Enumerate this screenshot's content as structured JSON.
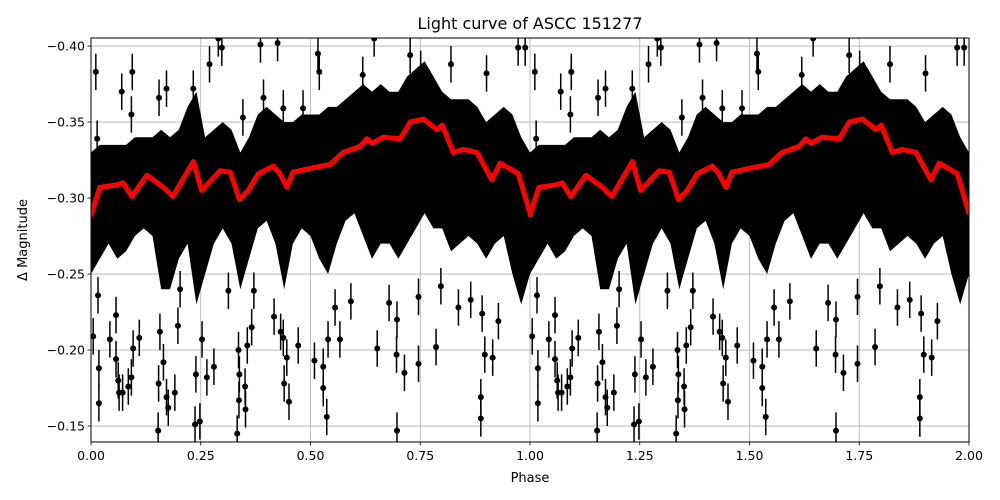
{
  "chart_data": {
    "type": "scatter",
    "title": "Light curve of ASCC 151277",
    "xlabel": "Phase",
    "ylabel": "Δ Magnitude",
    "xlim": [
      0,
      2
    ],
    "ylim": [
      -0.1395,
      -0.4053
    ],
    "y_inverted": true,
    "grid": true,
    "x_ticks": [
      0,
      0.25,
      0.5,
      0.75,
      1.0,
      1.25,
      1.5,
      1.75,
      2.0
    ],
    "x_tick_labels": [
      "0.00",
      "0.25",
      "0.50",
      "0.75",
      "1.00",
      "1.25",
      "1.50",
      "1.75",
      "2.00"
    ],
    "y_ticks": [
      -0.4,
      -0.35,
      -0.3,
      -0.25,
      -0.2,
      -0.15
    ],
    "y_tick_labels": [
      "−0.40",
      "−0.35",
      "−0.30",
      "−0.25",
      "−0.20",
      "−0.15"
    ],
    "folded_period_repeats": 2,
    "colors": {
      "points": "#000000",
      "trend": "#ff0000",
      "grid": "#b0b0b0"
    },
    "observations_dense_range": {
      "phase": [
        0,
        0.02,
        0.04,
        0.06,
        0.08,
        0.1,
        0.12,
        0.14,
        0.16,
        0.18,
        0.2,
        0.22,
        0.24,
        0.26,
        0.28,
        0.3,
        0.32,
        0.34,
        0.36,
        0.38,
        0.4,
        0.42,
        0.44,
        0.46,
        0.48,
        0.5,
        0.52,
        0.54,
        0.56,
        0.58,
        0.6,
        0.62,
        0.64,
        0.66,
        0.68,
        0.7,
        0.72,
        0.74,
        0.76,
        0.78,
        0.8,
        0.82,
        0.84,
        0.86,
        0.88,
        0.9,
        0.92,
        0.94,
        0.96,
        0.98,
        1.0
      ],
      "bright": [
        -0.33,
        -0.335,
        -0.335,
        -0.335,
        -0.335,
        -0.34,
        -0.34,
        -0.34,
        -0.345,
        -0.34,
        -0.345,
        -0.36,
        -0.37,
        -0.34,
        -0.345,
        -0.35,
        -0.345,
        -0.33,
        -0.34,
        -0.355,
        -0.36,
        -0.355,
        -0.35,
        -0.35,
        -0.355,
        -0.355,
        -0.355,
        -0.36,
        -0.36,
        -0.365,
        -0.37,
        -0.375,
        -0.37,
        -0.375,
        -0.37,
        -0.37,
        -0.38,
        -0.385,
        -0.39,
        -0.38,
        -0.37,
        -0.365,
        -0.365,
        -0.365,
        -0.36,
        -0.35,
        -0.355,
        -0.36,
        -0.355,
        -0.34,
        -0.33
      ],
      "faint": [
        -0.25,
        -0.26,
        -0.27,
        -0.26,
        -0.265,
        -0.275,
        -0.28,
        -0.275,
        -0.24,
        -0.24,
        -0.26,
        -0.27,
        -0.23,
        -0.25,
        -0.27,
        -0.28,
        -0.27,
        -0.24,
        -0.26,
        -0.28,
        -0.285,
        -0.27,
        -0.24,
        -0.27,
        -0.28,
        -0.275,
        -0.26,
        -0.25,
        -0.27,
        -0.285,
        -0.29,
        -0.275,
        -0.26,
        -0.27,
        -0.27,
        -0.26,
        -0.27,
        -0.28,
        -0.29,
        -0.28,
        -0.28,
        -0.265,
        -0.27,
        -0.275,
        -0.27,
        -0.26,
        -0.27,
        -0.275,
        -0.25,
        -0.23,
        -0.25
      ]
    },
    "observations": {
      "error": 0.012,
      "points": [
        [
          0.005,
          -0.209
        ],
        [
          0.018,
          -0.188
        ],
        [
          0.018,
          -0.165
        ],
        [
          0.016,
          -0.236
        ],
        [
          0.043,
          -0.207
        ],
        [
          0.057,
          -0.223
        ],
        [
          0.057,
          -0.194
        ],
        [
          0.062,
          -0.18
        ],
        [
          0.064,
          -0.172
        ],
        [
          0.072,
          -0.172
        ],
        [
          0.085,
          -0.176
        ],
        [
          0.092,
          -0.182
        ],
        [
          0.096,
          -0.201
        ],
        [
          0.11,
          -0.208
        ],
        [
          0.154,
          -0.178
        ],
        [
          0.153,
          -0.147
        ],
        [
          0.157,
          -0.212
        ],
        [
          0.165,
          -0.192
        ],
        [
          0.172,
          -0.169
        ],
        [
          0.176,
          -0.162
        ],
        [
          0.191,
          -0.172
        ],
        [
          0.198,
          -0.216
        ],
        [
          0.203,
          -0.24
        ],
        [
          0.237,
          -0.151
        ],
        [
          0.239,
          -0.184
        ],
        [
          0.248,
          -0.153
        ],
        [
          0.253,
          -0.207
        ],
        [
          0.264,
          -0.182
        ],
        [
          0.28,
          -0.189
        ],
        [
          0.313,
          -0.239
        ],
        [
          0.333,
          -0.145
        ],
        [
          0.336,
          -0.2
        ],
        [
          0.337,
          -0.167
        ],
        [
          0.338,
          -0.184
        ],
        [
          0.351,
          -0.176
        ],
        [
          0.352,
          -0.161
        ],
        [
          0.356,
          -0.203
        ],
        [
          0.366,
          -0.215
        ],
        [
          0.371,
          -0.239
        ],
        [
          0.417,
          -0.222
        ],
        [
          0.432,
          -0.212
        ],
        [
          0.438,
          -0.208
        ],
        [
          0.44,
          -0.178
        ],
        [
          0.446,
          -0.195
        ],
        [
          0.451,
          -0.166
        ],
        [
          0.472,
          -0.203
        ],
        [
          0.509,
          -0.193
        ],
        [
          0.529,
          -0.189
        ],
        [
          0.529,
          -0.175
        ],
        [
          0.537,
          -0.156
        ],
        [
          0.54,
          -0.207
        ],
        [
          0.567,
          -0.207
        ],
        [
          0.556,
          -0.228
        ],
        [
          0.592,
          -0.232
        ],
        [
          0.652,
          -0.201
        ],
        [
          0.679,
          -0.231
        ],
        [
          0.696,
          -0.197
        ],
        [
          0.697,
          -0.22
        ],
        [
          0.697,
          -0.147
        ],
        [
          0.714,
          -0.185
        ],
        [
          0.746,
          -0.191
        ],
        [
          0.746,
          -0.235
        ],
        [
          0.786,
          -0.202
        ],
        [
          0.797,
          -0.242
        ],
        [
          0.837,
          -0.228
        ],
        [
          0.865,
          -0.233
        ],
        [
          0.888,
          -0.169
        ],
        [
          0.888,
          -0.155
        ],
        [
          0.891,
          -0.224
        ],
        [
          0.897,
          -0.197
        ],
        [
          0.915,
          -0.195
        ],
        [
          0.928,
          -0.219
        ],
        [
          0.011,
          -0.383
        ],
        [
          0.014,
          -0.339
        ],
        [
          0.07,
          -0.37
        ],
        [
          0.094,
          -0.383
        ],
        [
          0.092,
          -0.355
        ],
        [
          0.155,
          -0.366
        ],
        [
          0.172,
          -0.372
        ],
        [
          0.233,
          -0.372
        ],
        [
          0.27,
          -0.388
        ],
        [
          0.298,
          -0.399
        ],
        [
          0.29,
          -0.405
        ],
        [
          0.346,
          -0.353
        ],
        [
          0.386,
          -0.401
        ],
        [
          0.393,
          -0.366
        ],
        [
          0.425,
          -0.402
        ],
        [
          0.438,
          -0.359
        ],
        [
          0.483,
          -0.359
        ],
        [
          0.517,
          -0.395
        ],
        [
          0.52,
          -0.383
        ],
        [
          0.619,
          -0.381
        ],
        [
          0.645,
          -0.405
        ],
        [
          0.727,
          -0.394
        ],
        [
          0.751,
          -0.385
        ],
        [
          0.82,
          -0.388
        ],
        [
          0.901,
          -0.382
        ],
        [
          0.973,
          -0.399
        ],
        [
          0.989,
          -0.399
        ]
      ]
    },
    "trend": {
      "phase": [
        0.0,
        0.02,
        0.055,
        0.073,
        0.093,
        0.127,
        0.165,
        0.186,
        0.233,
        0.252,
        0.294,
        0.317,
        0.338,
        0.358,
        0.381,
        0.415,
        0.43,
        0.446,
        0.46,
        0.506,
        0.544,
        0.574,
        0.613,
        0.628,
        0.64,
        0.665,
        0.704,
        0.727,
        0.757,
        0.788,
        0.8,
        0.825,
        0.848,
        0.879,
        0.913,
        0.932,
        0.973,
        1.0
      ],
      "magnitude": [
        -0.289,
        -0.307,
        -0.3085,
        -0.31,
        -0.301,
        -0.315,
        -0.307,
        -0.301,
        -0.324,
        -0.305,
        -0.318,
        -0.317,
        -0.299,
        -0.305,
        -0.316,
        -0.321,
        -0.316,
        -0.307,
        -0.317,
        -0.32,
        -0.322,
        -0.33,
        -0.334,
        -0.339,
        -0.336,
        -0.34,
        -0.339,
        -0.35,
        -0.352,
        -0.345,
        -0.348,
        -0.33,
        -0.332,
        -0.33,
        -0.312,
        -0.323,
        -0.316,
        -0.29
      ]
    }
  }
}
